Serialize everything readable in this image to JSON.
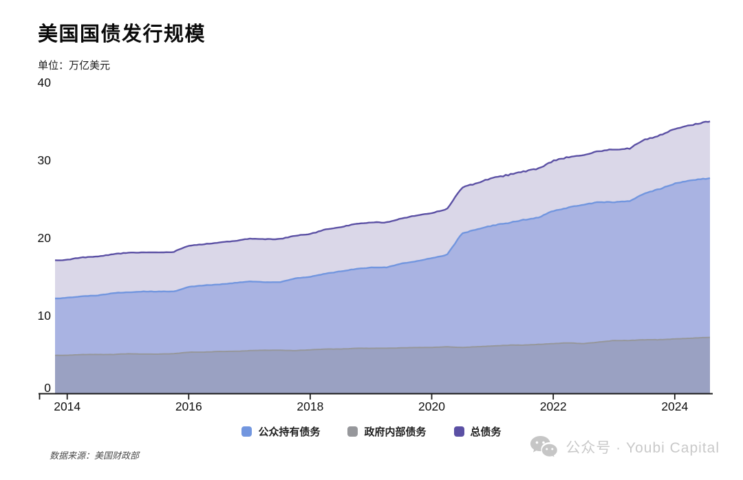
{
  "header": {
    "title": "美国国债发行规模",
    "unit": "单位：万亿美元"
  },
  "footer": {
    "source": "数据来源：美国财政部",
    "watermark_text": "公众号 · Youbi Capital",
    "watermark_icon": "wechat-icon"
  },
  "chart_data": {
    "type": "area",
    "title": "美国国债发行规模",
    "unit_label": "单位：万亿美元",
    "xlabel": "",
    "ylabel": "万亿美元",
    "xlim": [
      2013.8,
      2024.58
    ],
    "ylim": [
      0,
      40
    ],
    "xticks": [
      2014,
      2016,
      2018,
      2020,
      2022,
      2024
    ],
    "yticks": [
      0,
      10,
      20,
      30,
      40
    ],
    "grid": false,
    "legend_position": "bottom",
    "x": [
      2013.8,
      2014,
      2014.25,
      2014.5,
      2014.75,
      2015,
      2015.25,
      2015.5,
      2015.75,
      2016,
      2016.25,
      2016.5,
      2016.75,
      2017,
      2017.25,
      2017.5,
      2017.75,
      2018,
      2018.25,
      2018.5,
      2018.75,
      2019,
      2019.25,
      2019.5,
      2019.75,
      2020,
      2020.25,
      2020.5,
      2020.75,
      2021,
      2021.25,
      2021.5,
      2021.75,
      2022,
      2022.25,
      2022.5,
      2022.75,
      2023,
      2023.25,
      2023.5,
      2023.75,
      2024,
      2024.25,
      2024.58
    ],
    "series": [
      {
        "name": "公众持有债务",
        "color": "#7296DF",
        "values": [
          12.2,
          12.3,
          12.5,
          12.6,
          12.9,
          13.0,
          13.1,
          13.1,
          13.1,
          13.7,
          13.9,
          14.0,
          14.2,
          14.4,
          14.3,
          14.3,
          14.8,
          15.0,
          15.4,
          15.7,
          16.0,
          16.2,
          16.2,
          16.7,
          17.0,
          17.4,
          17.8,
          20.6,
          21.1,
          21.6,
          21.9,
          22.3,
          22.6,
          23.5,
          23.9,
          24.3,
          24.6,
          24.6,
          24.7,
          25.7,
          26.3,
          27.0,
          27.4,
          27.7
        ]
      },
      {
        "name": "政府内部债务",
        "color": "#96979B",
        "values": [
          4.9,
          4.9,
          5.0,
          5.0,
          5.0,
          5.1,
          5.05,
          5.05,
          5.1,
          5.3,
          5.3,
          5.4,
          5.4,
          5.5,
          5.55,
          5.55,
          5.5,
          5.6,
          5.7,
          5.7,
          5.8,
          5.8,
          5.8,
          5.85,
          5.9,
          5.9,
          6.0,
          5.9,
          6.0,
          6.1,
          6.2,
          6.2,
          6.3,
          6.4,
          6.5,
          6.4,
          6.6,
          6.8,
          6.8,
          6.9,
          6.9,
          7.0,
          7.1,
          7.2
        ]
      },
      {
        "name": "总债务",
        "color": "#5B50A4",
        "values": [
          17.1,
          17.2,
          17.5,
          17.6,
          17.9,
          18.1,
          18.15,
          18.15,
          18.2,
          19.0,
          19.2,
          19.4,
          19.6,
          19.9,
          19.85,
          19.85,
          20.3,
          20.5,
          21.1,
          21.4,
          21.8,
          22.0,
          22.0,
          22.5,
          22.9,
          23.2,
          23.7,
          26.5,
          27.1,
          27.7,
          28.1,
          28.5,
          28.9,
          29.9,
          30.4,
          30.6,
          31.2,
          31.4,
          31.5,
          32.6,
          33.2,
          34.0,
          34.5,
          35.0
        ]
      }
    ],
    "colors": {
      "axis": "#1a1a1a",
      "tick_label": "#0f0f0f",
      "band_total": "#DAD7E8",
      "band_public": "#A9B3E2",
      "band_intragov": "#9AA1C2"
    }
  }
}
